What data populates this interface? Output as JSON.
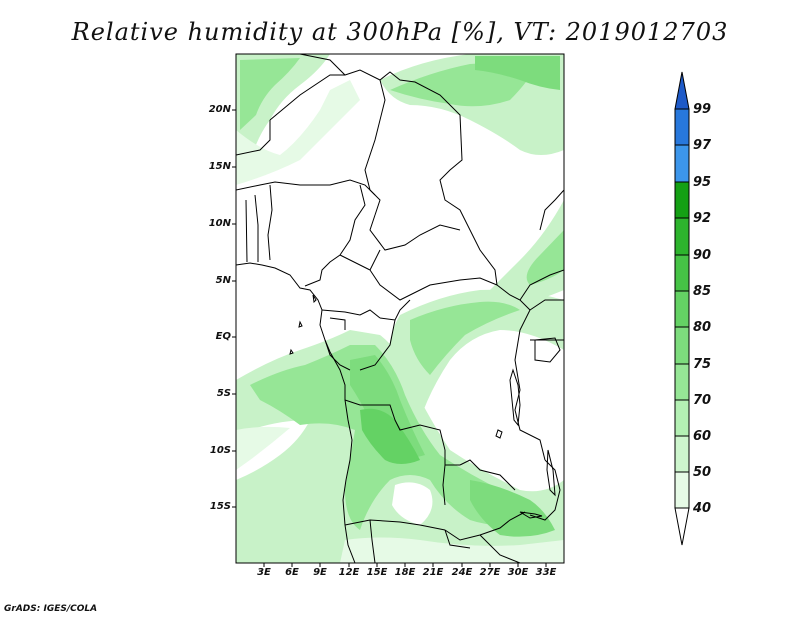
{
  "title": "Relative humidity at 300hPa [%], VT: 2019012703",
  "credit": "GrADS: IGES/COLA",
  "lat_labels": [
    "20N",
    "15N",
    "10N",
    "5N",
    "EQ",
    "5S",
    "10S",
    "15S"
  ],
  "lon_labels": [
    "3E",
    "6E",
    "9E",
    "12E",
    "15E",
    "18E",
    "21E",
    "24E",
    "27E",
    "30E",
    "33E"
  ],
  "colorbar": {
    "levels": [
      "40",
      "50",
      "60",
      "70",
      "75",
      "80",
      "85",
      "90",
      "92",
      "95",
      "97",
      "99"
    ],
    "colors": [
      "#ffffff",
      "#e6fae6",
      "#cdf5cd",
      "#b4f0b4",
      "#96e696",
      "#7ddc7d",
      "#64d264",
      "#46c346",
      "#2db42d",
      "#14a014",
      "#3c96eb",
      "#2878dc",
      "#1e5ac8"
    ]
  }
}
